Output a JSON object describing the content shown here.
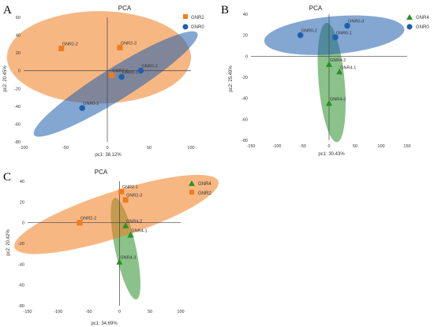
{
  "chart_data": [
    {
      "panel": "A",
      "type": "scatter",
      "title": "PCA",
      "xlabel": "pc1: 38.12%",
      "ylabel": "pc2: 20.45%",
      "xlim": [
        -100,
        100
      ],
      "ylim": [
        -80,
        60
      ],
      "xticks": [
        -100,
        -50,
        0,
        50,
        100
      ],
      "yticks": [
        -80,
        -60,
        -40,
        -20,
        0,
        20,
        40,
        60
      ],
      "series": [
        {
          "name": "GNR2",
          "color": "#f07c1e",
          "marker": "square",
          "points": [
            {
              "x": -55,
              "y": 25,
              "label": "GNR2-2"
            },
            {
              "x": 15,
              "y": 26,
              "label": "GNR2-3"
            },
            {
              "x": 5,
              "y": -5,
              "label": "GNR2-1"
            }
          ],
          "ellipse": {
            "cx": -10,
            "cy": 15,
            "rx": 110,
            "ry": 52,
            "angle": 0
          }
        },
        {
          "name": "GNR0",
          "color": "#1f5fad",
          "marker": "circle",
          "points": [
            {
              "x": 40,
              "y": 0,
              "label": "GNR0-3"
            },
            {
              "x": 17,
              "y": -7,
              "label": "GNR0-1"
            },
            {
              "x": -30,
              "y": -42,
              "label": "GNR0-2"
            }
          ],
          "ellipse": {
            "cx": 10,
            "cy": -15,
            "rx": 115,
            "ry": 18,
            "angle": 32
          }
        }
      ],
      "legend": "top-right"
    },
    {
      "panel": "B",
      "type": "scatter",
      "title": "PCA",
      "xlabel": "pc1: 30.43%",
      "ylabel": "pc2: 25.49%",
      "xlim": [
        -150,
        150
      ],
      "ylim": [
        -80,
        40
      ],
      "xticks": [
        -150,
        -100,
        -50,
        0,
        50,
        100,
        150
      ],
      "yticks": [
        -80,
        -60,
        -40,
        -20,
        0,
        20,
        40
      ],
      "series": [
        {
          "name": "GNR4",
          "color": "#2a8f2a",
          "marker": "triangle",
          "points": [
            {
              "x": 0,
              "y": -8,
              "label": "GNR4-2"
            },
            {
              "x": 20,
              "y": -15,
              "label": "GNR4-1"
            },
            {
              "x": 0,
              "y": -45,
              "label": "GNR4-3"
            }
          ],
          "ellipse": {
            "cx": 5,
            "cy": -25,
            "rx": 25,
            "ry": 57,
            "angle": 5
          }
        },
        {
          "name": "GNR0",
          "color": "#1f5fad",
          "marker": "circle",
          "points": [
            {
              "x": -55,
              "y": 20,
              "label": "GNR0-2"
            },
            {
              "x": 35,
              "y": 29,
              "label": "GNR0-3"
            },
            {
              "x": 12,
              "y": 18,
              "label": "GNR0-1"
            }
          ],
          "ellipse": {
            "cx": 10,
            "cy": 20,
            "rx": 135,
            "ry": 18,
            "angle": 5
          }
        }
      ],
      "legend": "top-right"
    },
    {
      "panel": "C",
      "type": "scatter",
      "title": "PCA",
      "xlabel": "pc1: 34.69%",
      "ylabel": "pc2: 20.42%",
      "xlim": [
        -150,
        100
      ],
      "ylim": [
        -80,
        40
      ],
      "xticks": [
        -150,
        -100,
        -50,
        0,
        50,
        100
      ],
      "yticks": [
        -80,
        -60,
        -40,
        -20,
        0,
        20,
        40
      ],
      "series": [
        {
          "name": "GNR4",
          "color": "#2a8f2a",
          "marker": "triangle",
          "points": [
            {
              "x": 10,
              "y": -3,
              "label": "GNR4-2"
            },
            {
              "x": 18,
              "y": -12,
              "label": "GNR4-1"
            },
            {
              "x": 0,
              "y": -38,
              "label": "GNR4-3"
            }
          ],
          "ellipse": {
            "cx": 10,
            "cy": -25,
            "rx": 17,
            "ry": 50,
            "angle": 12
          }
        },
        {
          "name": "GNR2",
          "color": "#f07c1e",
          "marker": "square",
          "points": [
            {
              "x": 3,
              "y": 30,
              "label": "GNR2-1"
            },
            {
              "x": 10,
              "y": 22,
              "label": "GNR2-3"
            },
            {
              "x": -65,
              "y": 0,
              "label": "GNR2-2"
            }
          ],
          "ellipse": {
            "cx": -5,
            "cy": 8,
            "rx": 175,
            "ry": 22,
            "angle": 18
          }
        }
      ],
      "legend": "top-right"
    }
  ]
}
